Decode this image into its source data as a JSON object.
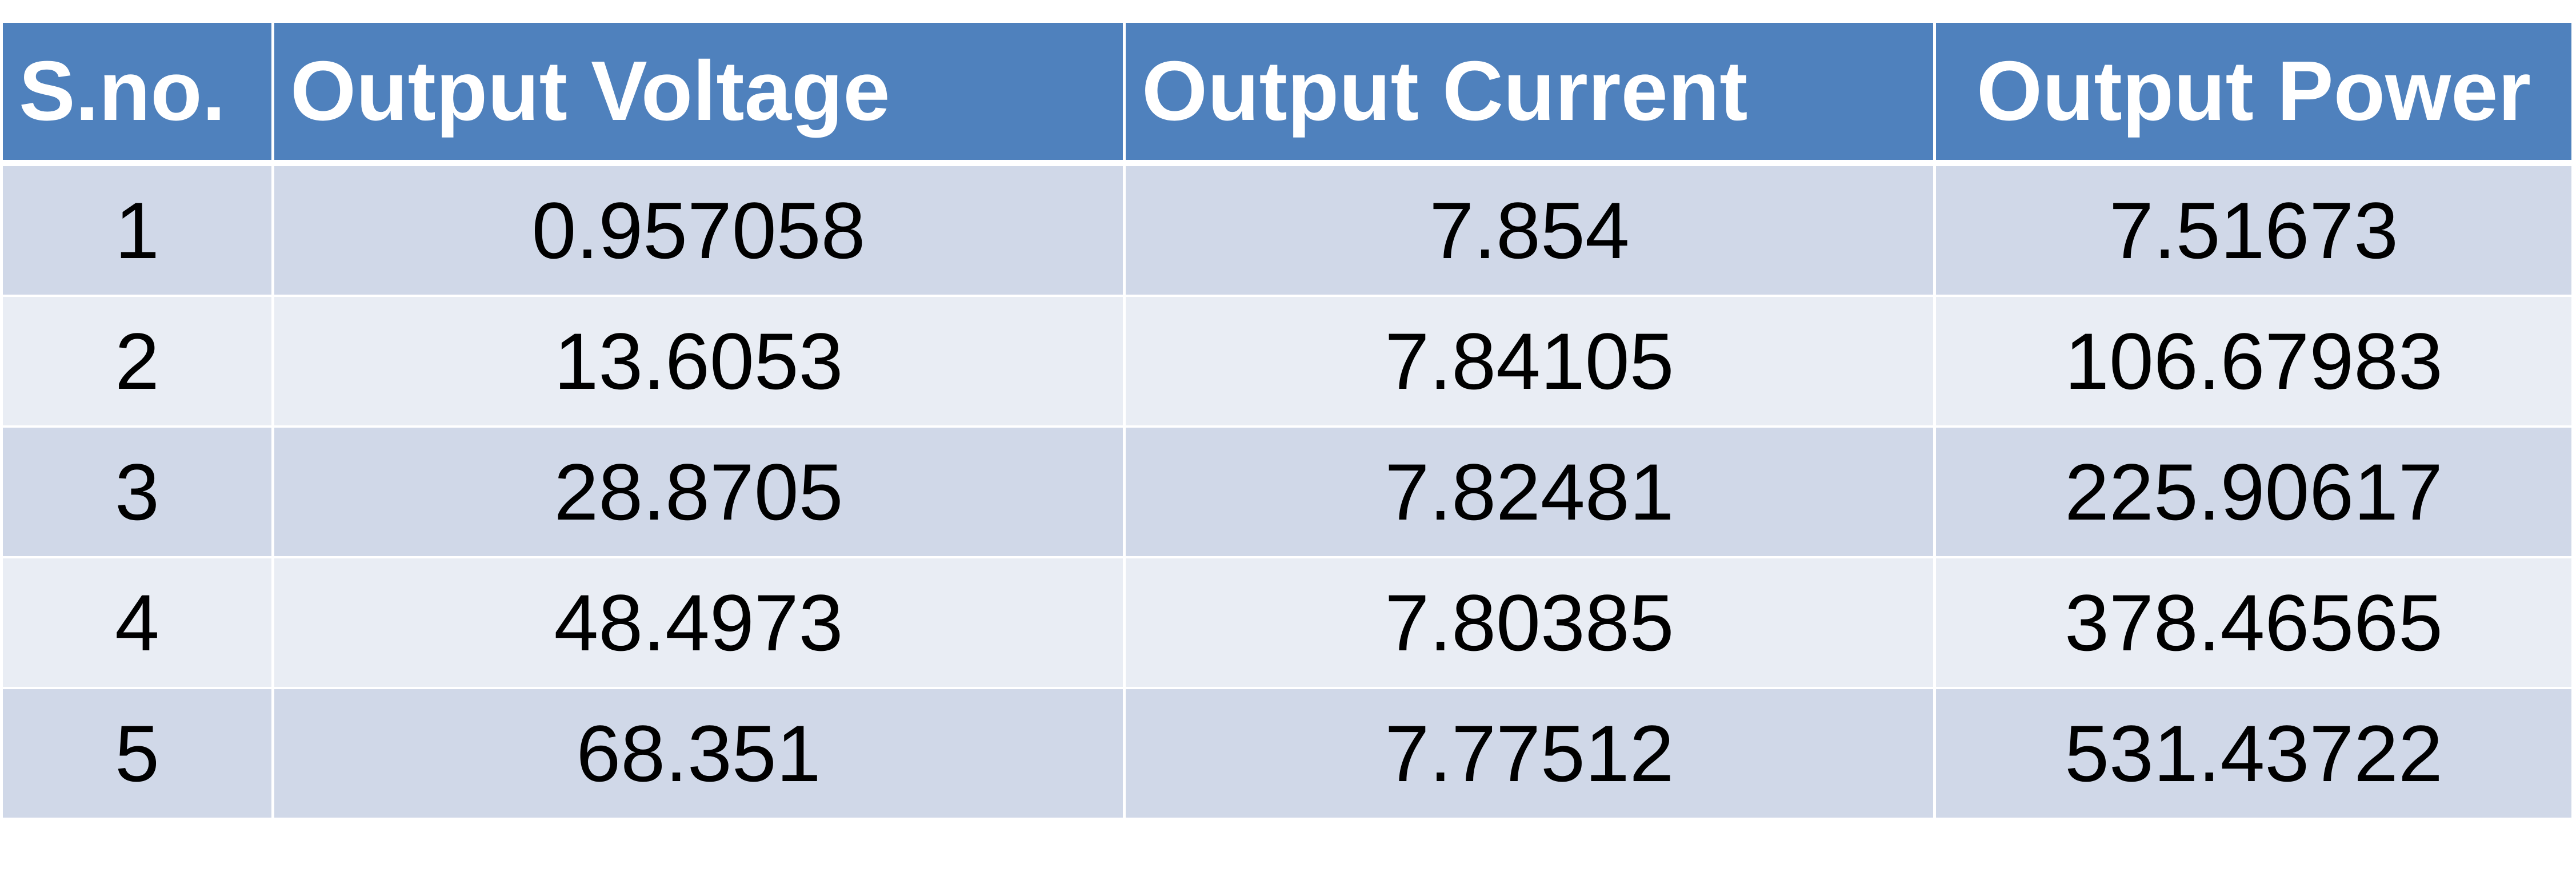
{
  "table": {
    "headers": [
      "S.no.",
      "Output Voltage",
      "Output Current",
      "Output Power"
    ],
    "rows": [
      [
        "1",
        "0.957058",
        "7.854",
        "7.51673"
      ],
      [
        "2",
        "13.6053",
        "7.84105",
        "106.67983"
      ],
      [
        "3",
        "28.8705",
        "7.82481",
        "225.90617"
      ],
      [
        "4",
        "48.4973",
        "7.80385",
        "378.46565"
      ],
      [
        "5",
        "68.351",
        "7.77512",
        "531.43722"
      ]
    ]
  },
  "colors": {
    "header_bg": "#4f81bd",
    "row_odd_bg": "#d0d8e8",
    "row_even_bg": "#e9edf4"
  }
}
